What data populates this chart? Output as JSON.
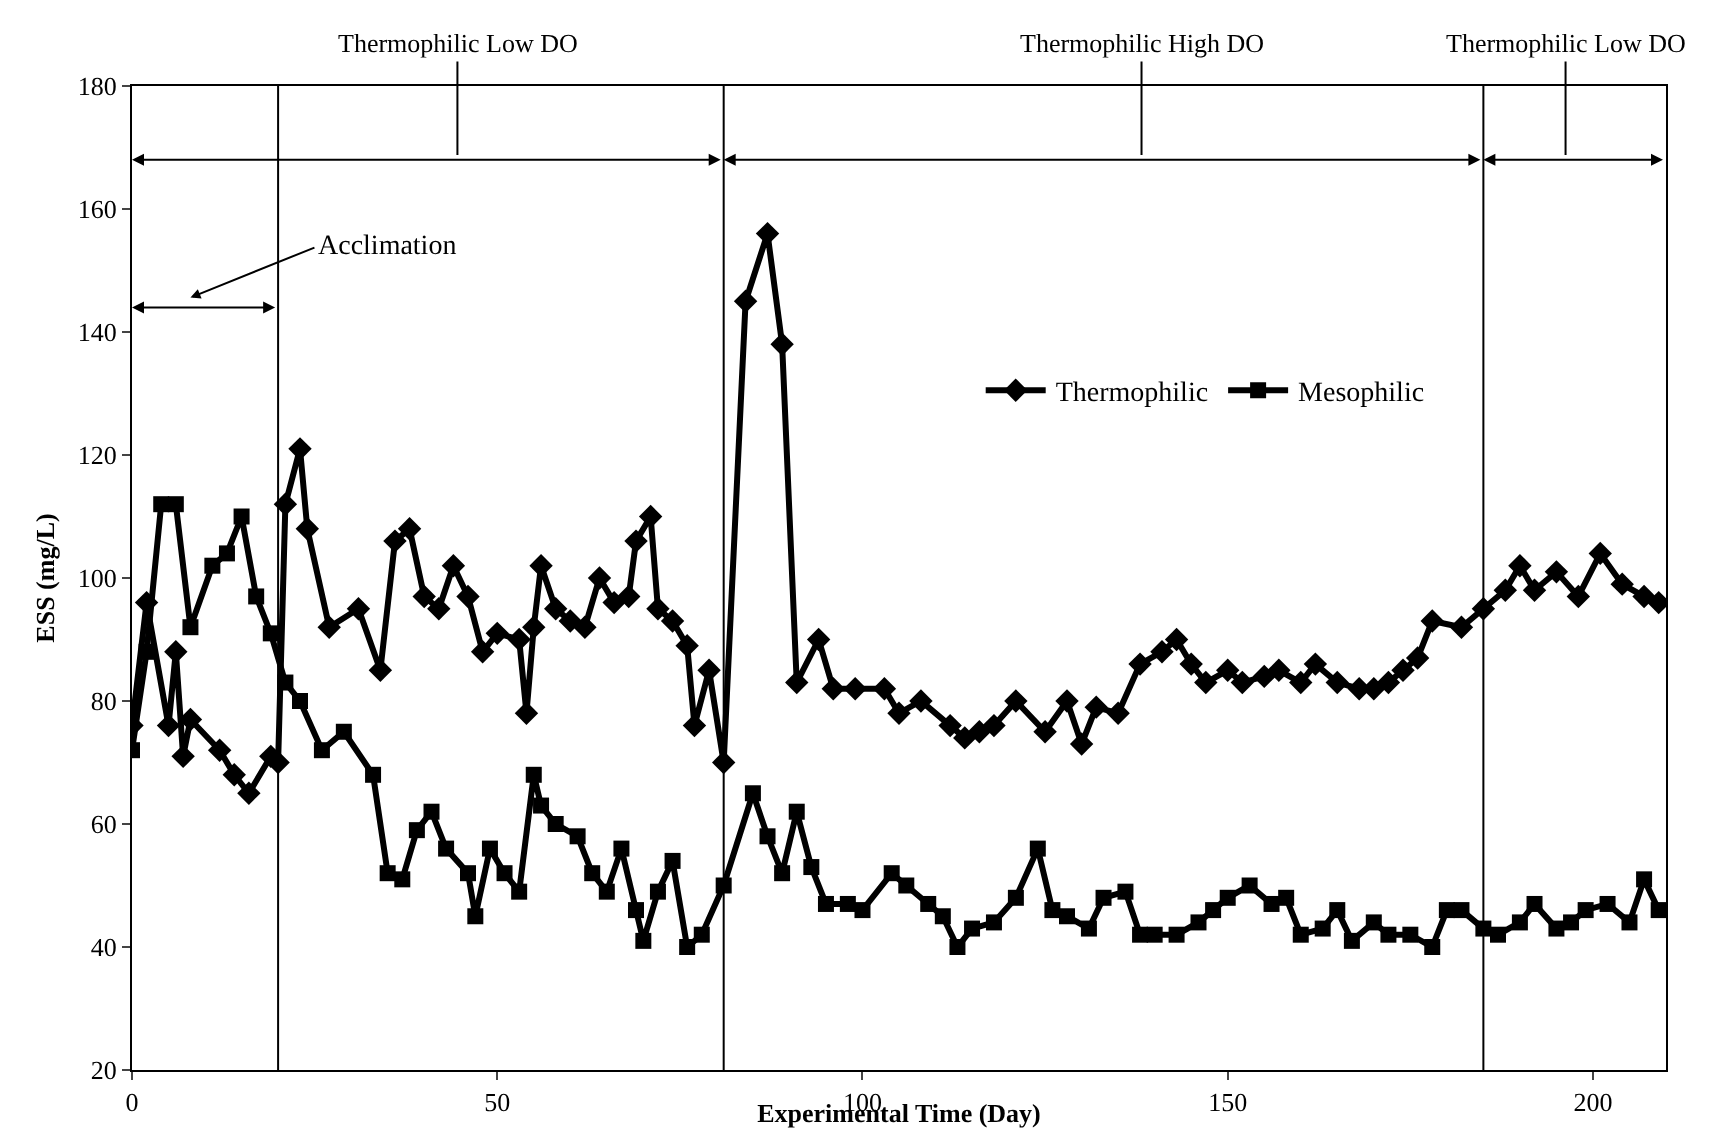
{
  "chart_data": {
    "type": "line",
    "xlabel": "Experimental Time (Day)",
    "ylabel": "ESS (mg/L)",
    "xlim": [
      0,
      210
    ],
    "xticks": [
      0,
      50,
      100,
      150,
      200
    ],
    "ylim": [
      20,
      180
    ],
    "yticks": [
      20,
      40,
      60,
      80,
      100,
      120,
      140,
      160,
      180
    ],
    "grid": false,
    "legend": "top right",
    "series": [
      {
        "name": "Thermophilic",
        "color": "#000000",
        "marker": "diamond",
        "x": [
          0,
          2,
          5,
          6,
          7,
          8,
          12,
          14,
          16,
          19,
          20,
          21,
          23,
          24,
          27,
          31,
          34,
          36,
          38,
          40,
          42,
          44,
          46,
          48,
          50,
          53,
          54,
          55,
          56,
          58,
          60,
          62,
          64,
          66,
          68,
          69,
          71,
          72,
          74,
          76,
          77,
          79,
          81,
          84,
          87,
          89,
          91,
          94,
          96,
          99,
          103,
          105,
          108,
          112,
          114,
          116,
          118,
          121,
          125,
          128,
          130,
          132,
          135,
          138,
          141,
          143,
          145,
          147,
          150,
          152,
          155,
          157,
          160,
          162,
          165,
          168,
          170,
          172,
          174,
          176,
          178,
          182,
          185,
          188,
          190,
          192,
          195,
          198,
          201,
          204,
          207,
          209
        ],
        "values": [
          76,
          96,
          76,
          88,
          71,
          77,
          72,
          68,
          65,
          71,
          70,
          112,
          121,
          108,
          92,
          95,
          85,
          106,
          108,
          97,
          95,
          102,
          97,
          88,
          91,
          90,
          78,
          92,
          102,
          95,
          93,
          92,
          100,
          96,
          97,
          106,
          110,
          95,
          93,
          89,
          76,
          85,
          70,
          145,
          156,
          138,
          83,
          90,
          82,
          82,
          82,
          78,
          80,
          76,
          74,
          75,
          76,
          80,
          75,
          80,
          73,
          79,
          78,
          86,
          88,
          90,
          86,
          83,
          85,
          83,
          84,
          85,
          83,
          86,
          83,
          82,
          82,
          83,
          85,
          87,
          93,
          92,
          95,
          98,
          102,
          98,
          101,
          97,
          104,
          99,
          97,
          96
        ]
      },
      {
        "name": "Mesophilic",
        "color": "#000000",
        "marker": "square",
        "x": [
          0,
          2,
          4,
          6,
          8,
          11,
          13,
          15,
          17,
          19,
          21,
          23,
          26,
          29,
          33,
          35,
          37,
          39,
          41,
          43,
          46,
          47,
          49,
          51,
          53,
          55,
          56,
          58,
          61,
          63,
          65,
          67,
          69,
          70,
          72,
          74,
          76,
          78,
          81,
          85,
          87,
          89,
          91,
          93,
          95,
          98,
          100,
          104,
          106,
          109,
          111,
          113,
          115,
          118,
          121,
          124,
          126,
          128,
          131,
          133,
          136,
          138,
          140,
          143,
          146,
          148,
          150,
          153,
          156,
          158,
          160,
          163,
          165,
          167,
          170,
          172,
          175,
          178,
          180,
          182,
          185,
          187,
          190,
          192,
          195,
          197,
          199,
          202,
          205,
          207,
          209
        ],
        "values": [
          72,
          88,
          112,
          112,
          92,
          102,
          104,
          110,
          97,
          91,
          83,
          80,
          72,
          75,
          68,
          52,
          51,
          59,
          62,
          56,
          52,
          45,
          56,
          52,
          49,
          68,
          63,
          60,
          58,
          52,
          49,
          56,
          46,
          41,
          49,
          54,
          40,
          42,
          50,
          65,
          58,
          52,
          62,
          53,
          47,
          47,
          46,
          52,
          50,
          47,
          45,
          40,
          43,
          44,
          48,
          56,
          46,
          45,
          43,
          48,
          49,
          42,
          42,
          42,
          44,
          46,
          48,
          50,
          47,
          48,
          42,
          43,
          46,
          41,
          44,
          42,
          42,
          40,
          46,
          46,
          43,
          42,
          44,
          47,
          43,
          44,
          46,
          47,
          44,
          51,
          46
        ]
      }
    ],
    "ref_lines": [
      {
        "axis": "x",
        "value": 20
      },
      {
        "axis": "x",
        "value": 81
      },
      {
        "axis": "x",
        "value": 185
      }
    ],
    "annotations": [
      "Thermophilic Low DO",
      "Thermophilic High DO",
      "Thermophilic Low DO",
      "Acclimation"
    ]
  }
}
